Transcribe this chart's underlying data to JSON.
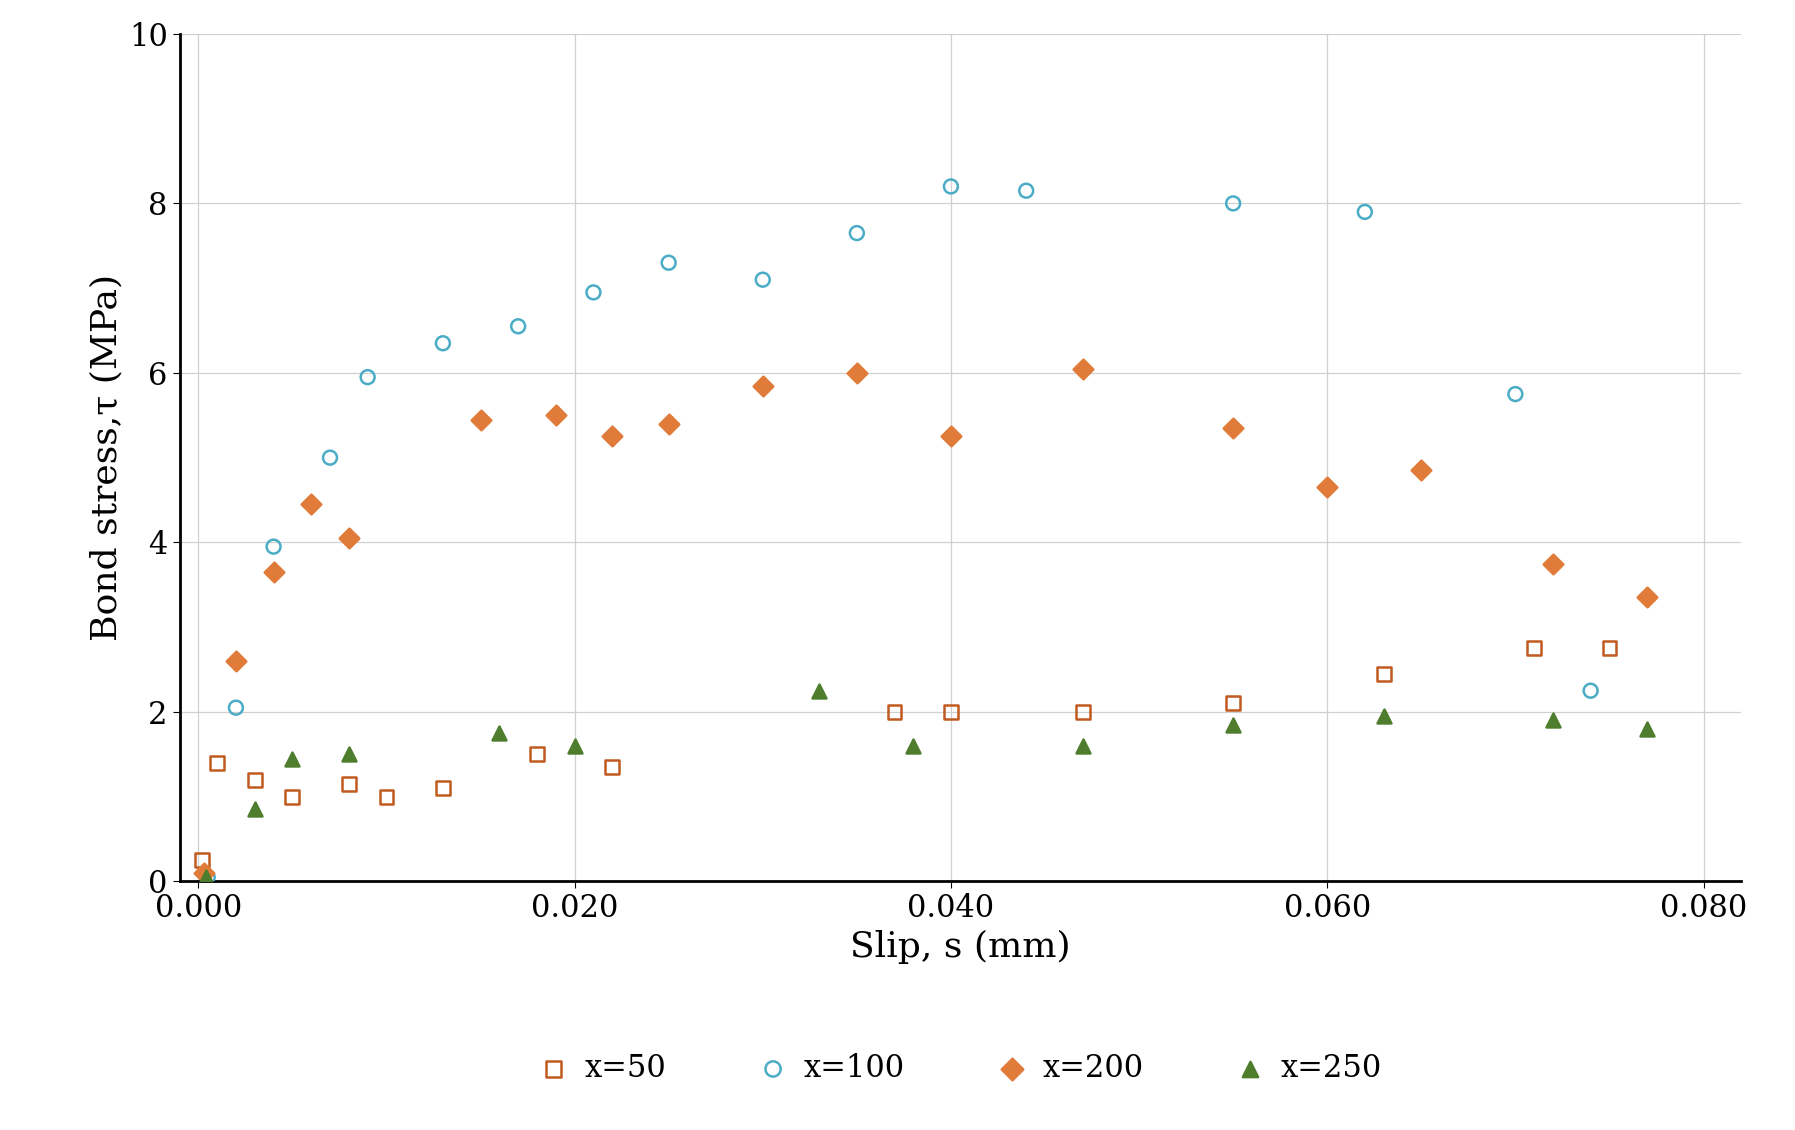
{
  "title": "",
  "xlabel": "Slip, s (mm)",
  "ylabel": "Bond stress,τ (MPa)",
  "xlim": [
    -0.001,
    0.082
  ],
  "ylim": [
    0,
    10
  ],
  "xticks": [
    0.0,
    0.02,
    0.04,
    0.06,
    0.08
  ],
  "yticks": [
    0,
    2,
    4,
    6,
    8,
    10
  ],
  "background_color": "#ffffff",
  "series": [
    {
      "label": "x=50",
      "color": "#c05a1f",
      "marker": "s",
      "marker_size": 10,
      "filled": false,
      "x": [
        0.0002,
        0.001,
        0.003,
        0.005,
        0.008,
        0.01,
        0.013,
        0.018,
        0.022,
        0.037,
        0.04,
        0.047,
        0.055,
        0.063,
        0.071,
        0.075
      ],
      "y": [
        0.25,
        1.4,
        1.2,
        1.0,
        1.15,
        1.0,
        1.1,
        1.5,
        1.35,
        2.0,
        2.0,
        2.0,
        2.1,
        2.45,
        2.75,
        2.75
      ]
    },
    {
      "label": "x=100",
      "color": "#4bacc6",
      "marker": "o",
      "marker_size": 10,
      "filled": false,
      "x": [
        0.0005,
        0.002,
        0.004,
        0.007,
        0.009,
        0.013,
        0.017,
        0.021,
        0.025,
        0.03,
        0.035,
        0.04,
        0.044,
        0.055,
        0.062,
        0.07,
        0.074
      ],
      "y": [
        0.05,
        2.05,
        3.95,
        5.0,
        5.95,
        6.35,
        6.55,
        6.95,
        7.3,
        7.1,
        7.65,
        8.2,
        8.15,
        8.0,
        7.9,
        5.75,
        2.25
      ]
    },
    {
      "label": "x=200",
      "color": "#e07b39",
      "marker": "D",
      "marker_size": 10,
      "filled": true,
      "x": [
        0.0003,
        0.002,
        0.004,
        0.006,
        0.008,
        0.015,
        0.019,
        0.022,
        0.025,
        0.03,
        0.035,
        0.04,
        0.047,
        0.055,
        0.06,
        0.065,
        0.072,
        0.077
      ],
      "y": [
        0.1,
        2.6,
        3.65,
        4.45,
        4.05,
        5.45,
        5.5,
        5.25,
        5.4,
        5.85,
        6.0,
        5.25,
        6.05,
        5.35,
        4.65,
        4.85,
        3.75,
        3.35
      ]
    },
    {
      "label": "x=250",
      "color": "#4e7d2e",
      "marker": "^",
      "marker_size": 10,
      "filled": true,
      "x": [
        0.0004,
        0.003,
        0.005,
        0.008,
        0.016,
        0.02,
        0.033,
        0.038,
        0.047,
        0.055,
        0.063,
        0.072,
        0.077
      ],
      "y": [
        0.05,
        0.85,
        1.45,
        1.5,
        1.75,
        1.6,
        2.25,
        1.6,
        1.6,
        1.85,
        1.95,
        1.9,
        1.8
      ]
    }
  ],
  "legend_ncol": 4,
  "fontsize_label": 26,
  "fontsize_tick": 22,
  "fontsize_legend": 22,
  "grid_color": "#d0d0d0"
}
